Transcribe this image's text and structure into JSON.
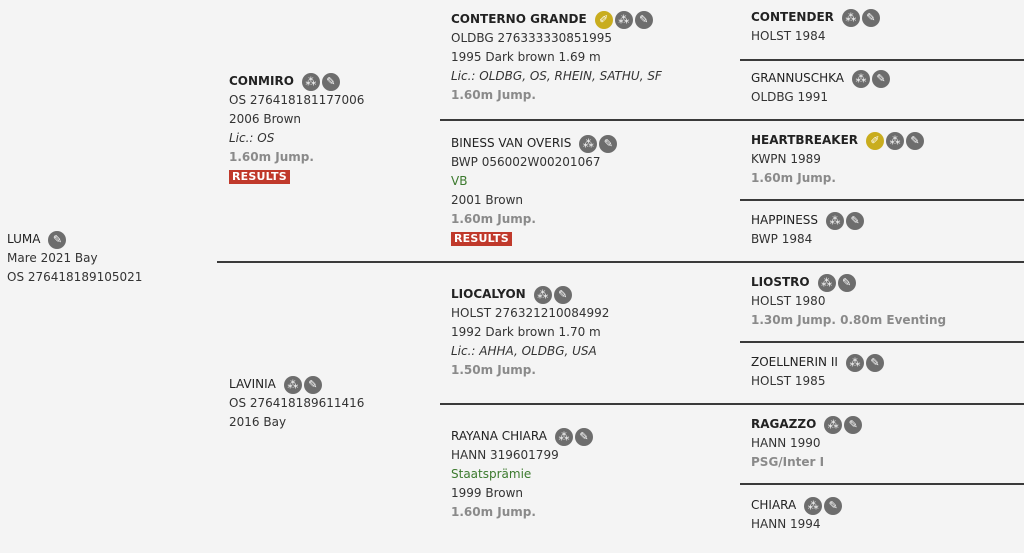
{
  "icons": {
    "pedigree": "pedigree-icon",
    "edit": "edit-icon",
    "licensed": "licensed-icon"
  },
  "colors": {
    "accent_gold": "#c9ad1e",
    "icon_gray": "#6d6d6d",
    "results_red": "#c0392b",
    "award_green": "#3c7a2e"
  },
  "horses": [
    {
      "id": "luma",
      "name": "LUMA",
      "bold": false,
      "icons": [
        "edit"
      ],
      "lines": [
        {
          "text": "Mare 2021 Bay",
          "kind": "normal"
        },
        {
          "text": "OS 276418189105021",
          "kind": "normal"
        }
      ]
    },
    {
      "id": "conmiro",
      "name": "CONMIRO",
      "bold": true,
      "icons": [
        "pedigree",
        "edit"
      ],
      "lines": [
        {
          "text": "OS 276418181177006",
          "kind": "normal"
        },
        {
          "text": "2006 Brown",
          "kind": "normal"
        },
        {
          "text": "Lic.: OS",
          "kind": "italic"
        },
        {
          "text": "1.60m Jump.",
          "kind": "achieve"
        },
        {
          "text": "RESULTS",
          "kind": "results"
        }
      ]
    },
    {
      "id": "lavinia",
      "name": "LAVINIA",
      "bold": false,
      "icons": [
        "pedigree",
        "edit"
      ],
      "lines": [
        {
          "text": "OS 276418189611416",
          "kind": "normal"
        },
        {
          "text": "2016 Bay",
          "kind": "normal"
        }
      ]
    },
    {
      "id": "conterno-grande",
      "name": "CONTERNO GRANDE",
      "bold": true,
      "icons": [
        "licensed",
        "pedigree",
        "edit"
      ],
      "lines": [
        {
          "text": "OLDBG 276333330851995",
          "kind": "normal"
        },
        {
          "text": "1995 Dark brown 1.69 m",
          "kind": "normal"
        },
        {
          "text": "Lic.: OLDBG, OS, RHEIN, SATHU, SF",
          "kind": "italic"
        },
        {
          "text": "1.60m Jump.",
          "kind": "achieve"
        }
      ]
    },
    {
      "id": "biness-van-overis",
      "name": "BINESS VAN OVERIS",
      "bold": false,
      "icons": [
        "pedigree",
        "edit"
      ],
      "lines": [
        {
          "text": "BWP 056002W00201067",
          "kind": "normal"
        },
        {
          "text": "VB",
          "kind": "green"
        },
        {
          "text": "2001 Brown",
          "kind": "normal"
        },
        {
          "text": "1.60m Jump.",
          "kind": "achieve"
        },
        {
          "text": "RESULTS",
          "kind": "results"
        }
      ]
    },
    {
      "id": "liocalyon",
      "name": "LIOCALYON",
      "bold": true,
      "icons": [
        "pedigree",
        "edit"
      ],
      "lines": [
        {
          "text": "HOLST 276321210084992",
          "kind": "normal"
        },
        {
          "text": "1992 Dark brown 1.70 m",
          "kind": "normal"
        },
        {
          "text": "Lic.: AHHA, OLDBG, USA",
          "kind": "italic"
        },
        {
          "text": "1.50m Jump.",
          "kind": "achieve"
        }
      ]
    },
    {
      "id": "rayana-chiara",
      "name": "RAYANA CHIARA",
      "bold": false,
      "icons": [
        "pedigree",
        "edit"
      ],
      "lines": [
        {
          "text": "HANN 319601799",
          "kind": "normal"
        },
        {
          "text": "Staatsprämie",
          "kind": "green"
        },
        {
          "text": "1999 Brown",
          "kind": "normal"
        },
        {
          "text": "1.60m Jump.",
          "kind": "achieve"
        }
      ]
    },
    {
      "id": "contender",
      "name": "CONTENDER",
      "bold": true,
      "icons": [
        "pedigree",
        "edit"
      ],
      "lines": [
        {
          "text": "HOLST 1984",
          "kind": "normal"
        }
      ]
    },
    {
      "id": "grannuschka",
      "name": "GRANNUSCHKA",
      "bold": false,
      "icons": [
        "pedigree",
        "edit"
      ],
      "lines": [
        {
          "text": "OLDBG 1991",
          "kind": "normal"
        }
      ]
    },
    {
      "id": "heartbreaker",
      "name": "HEARTBREAKER",
      "bold": true,
      "icons": [
        "licensed",
        "pedigree",
        "edit"
      ],
      "lines": [
        {
          "text": "KWPN 1989",
          "kind": "normal"
        },
        {
          "text": "1.60m Jump.",
          "kind": "achieve"
        }
      ]
    },
    {
      "id": "happiness",
      "name": "HAPPINESS",
      "bold": false,
      "icons": [
        "pedigree",
        "edit"
      ],
      "lines": [
        {
          "text": "BWP 1984",
          "kind": "normal"
        }
      ]
    },
    {
      "id": "liostro",
      "name": "LIOSTRO",
      "bold": true,
      "icons": [
        "pedigree",
        "edit"
      ],
      "lines": [
        {
          "text": "HOLST 1980",
          "kind": "normal"
        },
        {
          "text": "1.30m Jump. 0.80m Eventing",
          "kind": "achieve"
        }
      ]
    },
    {
      "id": "zoellnerin-ii",
      "name": "ZOELLNERIN II",
      "bold": false,
      "icons": [
        "pedigree",
        "edit"
      ],
      "lines": [
        {
          "text": "HOLST 1985",
          "kind": "normal"
        }
      ]
    },
    {
      "id": "ragazzo",
      "name": "RAGAZZO",
      "bold": true,
      "icons": [
        "pedigree",
        "edit"
      ],
      "lines": [
        {
          "text": "HANN 1990",
          "kind": "normal"
        },
        {
          "text": "PSG/Inter I",
          "kind": "achieve"
        }
      ]
    },
    {
      "id": "chiara",
      "name": "CHIARA",
      "bold": false,
      "icons": [
        "pedigree",
        "edit"
      ],
      "lines": [
        {
          "text": "HANN 1994",
          "kind": "normal"
        }
      ]
    }
  ]
}
